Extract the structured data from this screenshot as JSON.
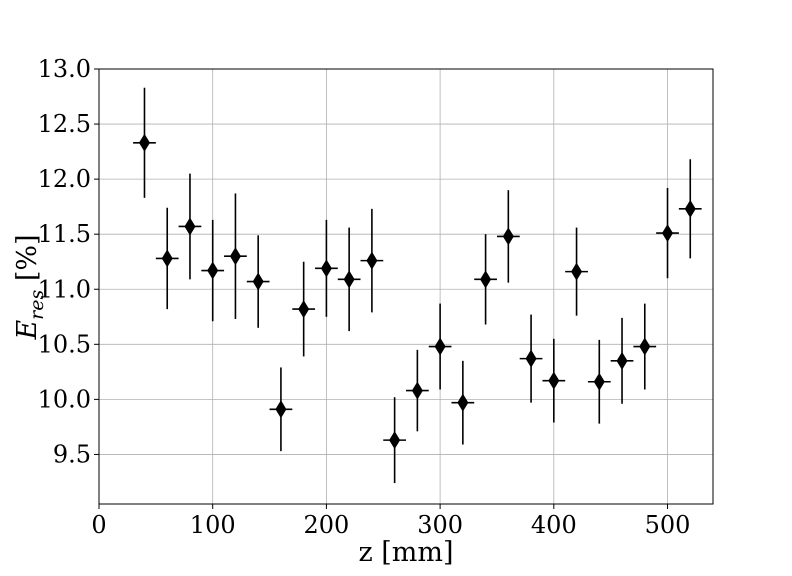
{
  "chart_data": {
    "type": "scatter",
    "title": "",
    "xlabel": "z [mm]",
    "ylabel": "E",
    "ylabel_subscript": "res",
    "ylabel_unit": " [%]",
    "xlim": [
      0,
      540
    ],
    "ylim": [
      9.05,
      13.0
    ],
    "xticks": [
      0,
      100,
      200,
      300,
      400,
      500
    ],
    "yticks": [
      9.5,
      10.0,
      10.5,
      11.0,
      11.5,
      12.0,
      12.5,
      13.0
    ],
    "ytick_labels": [
      "9.5",
      "10.0",
      "10.5",
      "11.0",
      "11.5",
      "12.0",
      "12.5",
      "13.0"
    ],
    "grid": true,
    "marker": "diamond",
    "color": "#000000",
    "x_error": 10,
    "series": [
      {
        "x": [
          40,
          60,
          80,
          100,
          120,
          140,
          160,
          180,
          200,
          220,
          240,
          260,
          280,
          300,
          320,
          340,
          360,
          380,
          400,
          420,
          440,
          460,
          480,
          500,
          520
        ],
        "y": [
          12.33,
          11.28,
          11.57,
          11.17,
          11.3,
          11.07,
          9.91,
          10.82,
          11.19,
          11.09,
          11.26,
          9.63,
          10.08,
          10.48,
          9.97,
          11.09,
          11.48,
          10.37,
          10.17,
          11.16,
          10.16,
          10.35,
          10.48,
          11.51,
          11.73
        ],
        "yerr": [
          0.5,
          0.46,
          0.48,
          0.46,
          0.57,
          0.42,
          0.38,
          0.43,
          0.44,
          0.47,
          0.47,
          0.39,
          0.37,
          0.39,
          0.38,
          0.41,
          0.42,
          0.4,
          0.38,
          0.4,
          0.38,
          0.39,
          0.39,
          0.41,
          0.45
        ]
      }
    ]
  }
}
